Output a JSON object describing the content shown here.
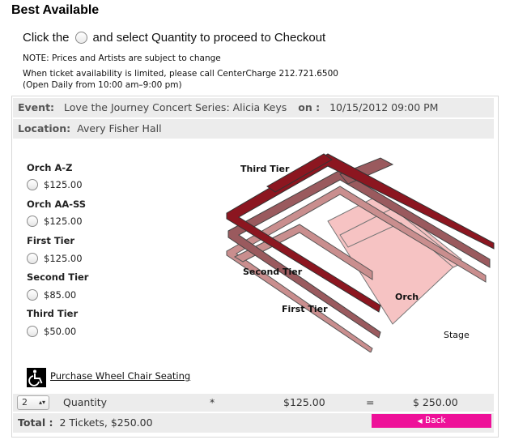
{
  "page_title": "Best Available",
  "instruction": {
    "before": "Click the",
    "after": "and select Quantity to proceed to Checkout"
  },
  "notes": {
    "line1": "NOTE: Prices and Artists are subject to change",
    "line2": "When ticket availability is limited, please call CenterCharge 212.721.6500",
    "line3": "(Open Daily from 10:00 am–9:00 pm)"
  },
  "event": {
    "event_label": "Event:",
    "event_name": "Love the Journey Concert Series: Alicia Keys",
    "on_label": "on :",
    "datetime": "10/15/2012 09:00 PM",
    "location_label": "Location:",
    "location": "Avery Fisher Hall"
  },
  "sections": [
    {
      "name": "Orch A-Z",
      "price": "$125.00"
    },
    {
      "name": "Orch AA-SS",
      "price": "$125.00"
    },
    {
      "name": "First Tier",
      "price": "$125.00"
    },
    {
      "name": "Second Tier",
      "price": "$85.00"
    },
    {
      "name": "Third Tier",
      "price": "$50.00"
    }
  ],
  "seat_map": {
    "labels": {
      "third_tier": "Third Tier",
      "second_tier": "Second Tier",
      "first_tier": "First Tier",
      "orch": "Orch",
      "stage": "Stage"
    },
    "colors": {
      "third_tier": "#8c1620",
      "second_tier": "#9a5a5e",
      "first_tier": "#c98e8e",
      "orch": "#f6c3c3"
    }
  },
  "wheelchair": {
    "icon": "wheelchair-icon",
    "label": "Purchase Wheel Chair Seating"
  },
  "quantity": {
    "selected": "2",
    "label": "Quantity",
    "multiply": "*",
    "unit_price": "$125.00",
    "equals": "=",
    "subtotal": "$ 250.00"
  },
  "total": {
    "label": "Total :",
    "value": "2 Tickets, $250.00"
  },
  "back_button": {
    "arrow": "◀",
    "label": "Back",
    "color": "#ee1199"
  }
}
